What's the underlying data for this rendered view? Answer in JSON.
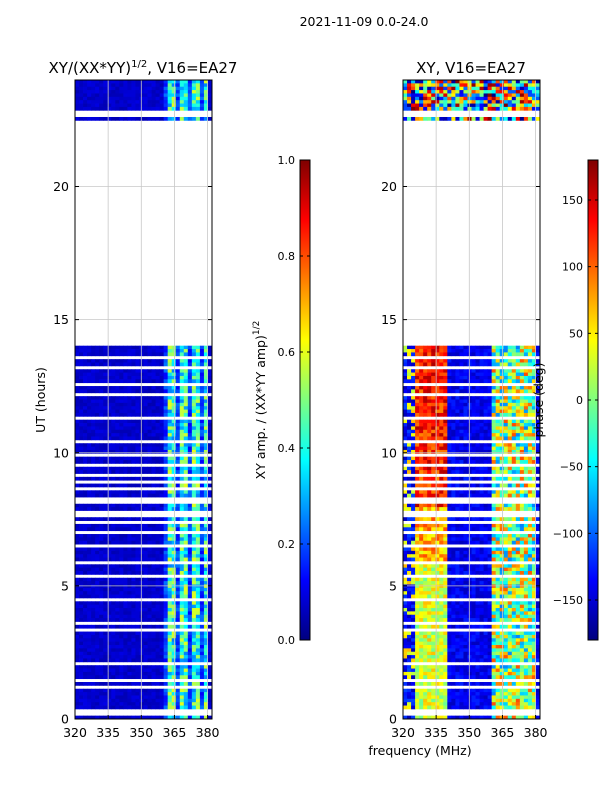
{
  "suptitle": "2021-11-09 0.0-24.0",
  "colors": {
    "jet": [
      "#00007f",
      "#0000ff",
      "#007fff",
      "#00ffff",
      "#7fff7f",
      "#ffff00",
      "#ff7f00",
      "#ff0000",
      "#7f0000"
    ],
    "bg_low": "#00008f",
    "white": "#ffffff"
  },
  "chart_data": [
    {
      "type": "heatmap",
      "name": "amplitude-ratio",
      "title_prefix": "XY/(XX*YY)",
      "title_sup": "1/2",
      "title_suffix": ", V16=EA27",
      "xlabel": "",
      "ylabel": "UT (hours)",
      "xlim": [
        320,
        382
      ],
      "ylim": [
        0,
        24
      ],
      "xticks": [
        320,
        335,
        350,
        365,
        380
      ],
      "yticks": [
        0,
        5,
        10,
        15,
        20
      ],
      "grid": true,
      "data_gap_hours": [
        14.0,
        22.5
      ],
      "active_band_mhz": [
        360,
        380
      ],
      "colorbar": {
        "label_prefix": "XY amp. / (XX*YY amp)",
        "label_sup": "1/2",
        "range": [
          0.0,
          1.0
        ],
        "ticks": [
          0.0,
          0.2,
          0.4,
          0.6,
          0.8,
          1.0
        ],
        "tick_labels": [
          "0.0",
          "0.2",
          "0.4",
          "0.6",
          "0.8",
          "1.0"
        ]
      }
    },
    {
      "type": "heatmap",
      "name": "phase",
      "title": "XY, V16=EA27",
      "xlabel": "frequency (MHz)",
      "ylabel": "",
      "xlim": [
        320,
        382
      ],
      "ylim": [
        0,
        24
      ],
      "xticks": [
        320,
        335,
        350,
        365,
        380
      ],
      "yticks": [
        0,
        5,
        10,
        15,
        20
      ],
      "grid": true,
      "data_gap_hours": [
        14.0,
        22.5
      ],
      "active_bands_mhz": [
        [
          320,
          340
        ],
        [
          360,
          380
        ]
      ],
      "colorbar": {
        "label": "phase (deg)",
        "range": [
          -180,
          180
        ],
        "ticks": [
          -150,
          -100,
          -50,
          0,
          50,
          100,
          150
        ],
        "tick_labels": [
          "−150",
          "−100",
          "−50",
          "0",
          "50",
          "100",
          "150"
        ]
      }
    }
  ]
}
